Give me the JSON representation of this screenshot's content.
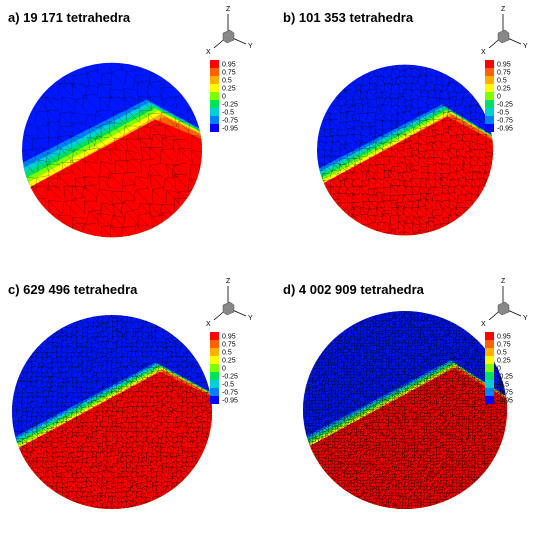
{
  "panels": [
    {
      "id": "a",
      "title": "a) 19 171 tetrahedra",
      "mesh_density": 1
    },
    {
      "id": "b",
      "title": "b) 101 353 tetrahedra",
      "mesh_density": 2
    },
    {
      "id": "c",
      "title": "c) 629 496 tetrahedra",
      "mesh_density": 3
    },
    {
      "id": "d",
      "title": "d) 4 002 909 tetrahedra",
      "mesh_density": 4
    }
  ],
  "axes_triad": {
    "x": "X",
    "y": "Y",
    "z": "Z"
  },
  "colorbar": {
    "levels": [
      "0.95",
      "0.75",
      "0.5",
      "0.25",
      "0",
      "-0.25",
      "-0.5",
      "-0.75",
      "-0.95"
    ],
    "colors": [
      "#ff0000",
      "#ff6000",
      "#ffb000",
      "#ffff00",
      "#80ff00",
      "#00e060",
      "#00d0d0",
      "#0080ff",
      "#0000ff"
    ]
  },
  "field_colors": {
    "positive": "#ff0000",
    "negative": "#0018ff"
  }
}
